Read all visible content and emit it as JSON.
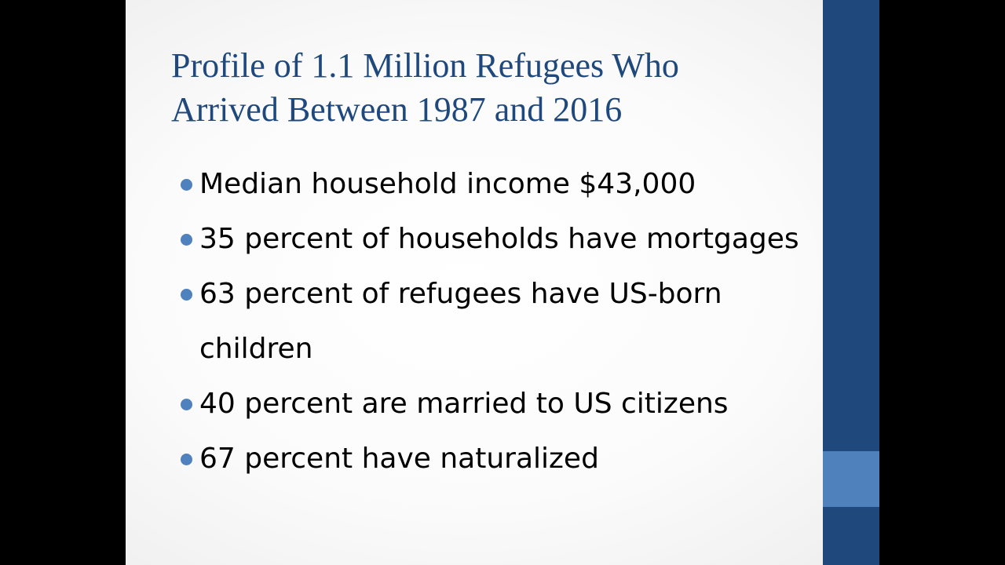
{
  "slide": {
    "title_line1": "Profile of 1.1 Million Refugees Who",
    "title_line2": "Arrived Between 1987 and 2016",
    "bullets": [
      {
        "text": "Median household income $43,000"
      },
      {
        "text": "35 percent of households have mortgages"
      },
      {
        "text": "63 percent of refugees have US-born children"
      },
      {
        "text": "40 percent are married to US citizens"
      },
      {
        "text": "67 percent have naturalized"
      }
    ]
  },
  "colors": {
    "title": "#1f497d",
    "bullet": "#4f81bd",
    "side_bar": "#1f497d",
    "side_accent": "#4f81bd"
  }
}
